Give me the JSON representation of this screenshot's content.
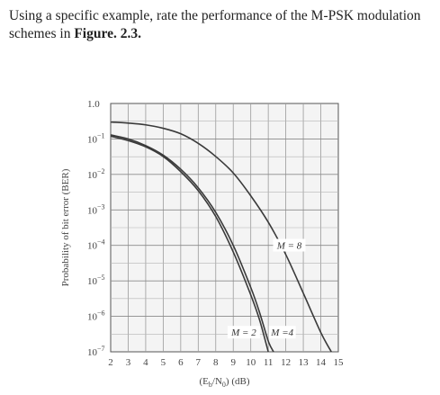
{
  "question": {
    "line1": "Using a specific example, rate the performance of the M-PSK modulation",
    "line2_prefix": "schemes in ",
    "line2_figref": "Figure. 2.3.",
    "line2_suffix": ""
  },
  "chart_data": {
    "type": "line",
    "title": "",
    "xlabel": "(Eb/N0) (dB)",
    "ylabel": "Probability of bit error (BER)",
    "xlim": [
      2,
      15
    ],
    "ylim": [
      1e-07,
      1.0
    ],
    "yscale": "log",
    "grid": true,
    "x_ticks": [
      2,
      3,
      4,
      5,
      6,
      7,
      8,
      9,
      10,
      11,
      12,
      13,
      14,
      15
    ],
    "x_tick_labels": [
      "2",
      "3",
      "4",
      "5",
      "6",
      "7",
      "8",
      "9",
      "10",
      "11",
      "12",
      "13",
      "14",
      "15"
    ],
    "y_ticks": [
      1.0,
      0.1,
      0.01,
      0.001,
      0.0001,
      1e-05,
      1e-06,
      1e-07
    ],
    "y_tick_labels": [
      {
        "base": "1.0",
        "exp": ""
      },
      {
        "base": "10",
        "exp": "−1"
      },
      {
        "base": "10",
        "exp": "−2"
      },
      {
        "base": "10",
        "exp": "−3"
      },
      {
        "base": "10",
        "exp": "−4"
      },
      {
        "base": "10",
        "exp": "−5"
      },
      {
        "base": "10",
        "exp": "−6"
      },
      {
        "base": "10",
        "exp": "−7"
      }
    ],
    "series": [
      {
        "name": "M = 2",
        "x": [
          2,
          3,
          4,
          5,
          6,
          7,
          8,
          9,
          10,
          10.5,
          11
        ],
        "y": [
          0.12,
          0.09,
          0.06,
          0.032,
          0.012,
          0.0035,
          0.00065,
          6.5e-05,
          4e-06,
          8e-07,
          1e-07
        ]
      },
      {
        "name": "M = 4",
        "x": [
          2,
          3,
          4,
          5,
          6,
          7,
          8,
          9,
          10,
          10.5,
          11,
          11.3
        ],
        "y": [
          0.13,
          0.1,
          0.065,
          0.035,
          0.014,
          0.0042,
          0.00085,
          0.0001,
          6.5e-06,
          1.3e-06,
          2e-07,
          1e-07
        ]
      },
      {
        "name": "M = 8",
        "x": [
          2,
          3,
          4,
          5,
          6,
          7,
          8,
          9,
          10,
          11,
          12,
          13,
          14,
          14.6
        ],
        "y": [
          0.3,
          0.28,
          0.25,
          0.2,
          0.14,
          0.075,
          0.032,
          0.011,
          0.0025,
          0.00045,
          5.5e-05,
          4.5e-06,
          3.5e-07,
          1e-07
        ]
      }
    ],
    "annotations": [
      "M = 8",
      "M = 2",
      "M =4"
    ]
  }
}
